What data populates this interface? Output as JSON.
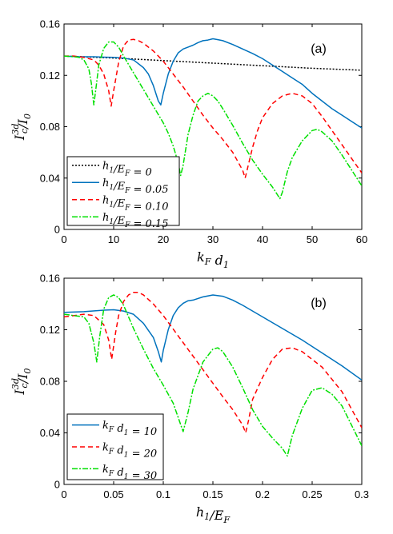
{
  "chart_data": [
    {
      "type": "line",
      "panel_label": "(a)",
      "xlabel": "k_F d_1",
      "ylabel": "I_c^{3d}/I_0",
      "xlim": [
        0,
        60
      ],
      "ylim": [
        0,
        0.16
      ],
      "xticks": [
        "0",
        "10",
        "20",
        "30",
        "40",
        "50",
        "60"
      ],
      "yticks": [
        "0",
        "0.04",
        "0.08",
        "0.12",
        "0.16"
      ],
      "grid": false,
      "legend_position": "bottom-left",
      "series": [
        {
          "name": "h_1/E_F = 0",
          "color": "#000000",
          "dash": "2,2",
          "x": [
            0,
            10,
            20,
            30,
            40,
            50,
            60
          ],
          "y": [
            0.135,
            0.1335,
            0.1315,
            0.1295,
            0.1275,
            0.1255,
            0.124
          ]
        },
        {
          "name": "h_1/E_F = 0.05",
          "color": "#0072BD",
          "dash": "",
          "x": [
            0,
            3,
            6,
            8,
            10,
            12,
            14,
            16,
            17,
            18,
            19,
            19.5,
            20,
            21,
            22,
            23,
            24,
            25,
            26,
            27,
            28,
            29,
            30,
            31,
            32,
            34,
            36,
            38,
            40,
            42,
            44,
            46,
            48,
            50,
            52,
            54,
            56,
            58,
            60
          ],
          "y": [
            0.135,
            0.1345,
            0.1345,
            0.1342,
            0.134,
            0.1335,
            0.132,
            0.126,
            0.121,
            0.112,
            0.1,
            0.097,
            0.106,
            0.121,
            0.131,
            0.1375,
            0.1405,
            0.142,
            0.1435,
            0.1455,
            0.147,
            0.1475,
            0.1485,
            0.1478,
            0.147,
            0.144,
            0.1405,
            0.137,
            0.133,
            0.128,
            0.123,
            0.118,
            0.113,
            0.106,
            0.1,
            0.094,
            0.089,
            0.084,
            0.079
          ]
        },
        {
          "name": "h_1/E_F = 0.10",
          "color": "#FF0000",
          "dash": "6,4",
          "x": [
            0,
            2,
            4,
            6,
            7,
            8,
            9,
            9.5,
            10,
            11,
            12,
            13,
            14,
            15,
            16,
            18,
            20,
            22,
            24,
            26,
            28,
            30,
            32,
            34,
            35,
            36,
            36.5,
            37,
            38,
            39,
            40,
            42,
            44,
            46,
            48,
            50,
            52,
            54,
            56,
            58,
            60
          ],
          "y": [
            0.135,
            0.135,
            0.134,
            0.132,
            0.128,
            0.121,
            0.108,
            0.096,
            0.108,
            0.13,
            0.143,
            0.1475,
            0.148,
            0.147,
            0.145,
            0.139,
            0.131,
            0.121,
            0.111,
            0.1,
            0.089,
            0.079,
            0.07,
            0.06,
            0.053,
            0.046,
            0.04,
            0.048,
            0.064,
            0.077,
            0.087,
            0.098,
            0.104,
            0.106,
            0.104,
            0.098,
            0.088,
            0.077,
            0.066,
            0.055,
            0.044
          ]
        },
        {
          "name": "h_1/E_F = 0.15",
          "color": "#00E000",
          "dash": "7,2,2,2",
          "x": [
            0,
            2,
            3,
            4,
            5,
            5.5,
            6,
            6.5,
            7,
            8,
            9,
            10,
            11,
            12,
            14,
            16,
            18,
            20,
            21,
            22,
            23,
            23.5,
            24,
            25,
            26,
            27,
            28,
            29,
            30,
            31,
            32,
            34,
            36,
            38,
            40,
            41,
            42,
            43,
            43.5,
            44,
            45,
            46,
            48,
            50,
            51,
            52,
            54,
            56,
            58,
            60
          ],
          "y": [
            0.135,
            0.1345,
            0.134,
            0.132,
            0.125,
            0.114,
            0.097,
            0.112,
            0.128,
            0.141,
            0.146,
            0.146,
            0.142,
            0.135,
            0.122,
            0.109,
            0.096,
            0.083,
            0.075,
            0.065,
            0.052,
            0.042,
            0.05,
            0.074,
            0.089,
            0.1,
            0.104,
            0.106,
            0.104,
            0.1,
            0.094,
            0.081,
            0.067,
            0.054,
            0.043,
            0.038,
            0.033,
            0.027,
            0.024,
            0.029,
            0.045,
            0.056,
            0.069,
            0.077,
            0.078,
            0.076,
            0.069,
            0.058,
            0.046,
            0.034
          ]
        }
      ]
    },
    {
      "type": "line",
      "panel_label": "(b)",
      "xlabel": "h_1/E_F",
      "ylabel": "I_c^{3d}/I_0",
      "xlim": [
        0,
        0.3
      ],
      "ylim": [
        0,
        0.16
      ],
      "xticks": [
        "0",
        "0.05",
        "0.1",
        "0.15",
        "0.2",
        "0.25",
        "0.3"
      ],
      "yticks": [
        "0",
        "0.04",
        "0.08",
        "0.12",
        "0.16"
      ],
      "grid": false,
      "legend_position": "bottom-left",
      "series": [
        {
          "name": "k_F d_1 = 10",
          "color": "#0072BD",
          "dash": "",
          "x": [
            0,
            0.02,
            0.04,
            0.05,
            0.06,
            0.07,
            0.08,
            0.09,
            0.095,
            0.098,
            0.1,
            0.105,
            0.11,
            0.115,
            0.12,
            0.125,
            0.13,
            0.14,
            0.15,
            0.16,
            0.17,
            0.18,
            0.2,
            0.22,
            0.24,
            0.26,
            0.28,
            0.3
          ],
          "y": [
            0.1335,
            0.134,
            0.1352,
            0.1355,
            0.1345,
            0.132,
            0.125,
            0.114,
            0.103,
            0.095,
            0.104,
            0.12,
            0.131,
            0.137,
            0.1405,
            0.1425,
            0.143,
            0.1455,
            0.147,
            0.146,
            0.143,
            0.139,
            0.13,
            0.121,
            0.112,
            0.102,
            0.092,
            0.081
          ]
        },
        {
          "name": "k_F d_1 = 20",
          "color": "#FF0000",
          "dash": "6,4",
          "x": [
            0,
            0.02,
            0.03,
            0.04,
            0.045,
            0.048,
            0.052,
            0.055,
            0.06,
            0.065,
            0.07,
            0.075,
            0.08,
            0.09,
            0.1,
            0.12,
            0.14,
            0.16,
            0.17,
            0.18,
            0.183,
            0.186,
            0.19,
            0.2,
            0.21,
            0.22,
            0.23,
            0.24,
            0.26,
            0.28,
            0.3
          ],
          "y": [
            0.13,
            0.132,
            0.131,
            0.124,
            0.112,
            0.097,
            0.118,
            0.131,
            0.142,
            0.147,
            0.149,
            0.149,
            0.147,
            0.14,
            0.131,
            0.11,
            0.089,
            0.068,
            0.058,
            0.046,
            0.04,
            0.05,
            0.066,
            0.083,
            0.097,
            0.105,
            0.106,
            0.103,
            0.091,
            0.072,
            0.044
          ]
        },
        {
          "name": "k_F d_1 = 30",
          "color": "#00E000",
          "dash": "7,2,2,2",
          "x": [
            0,
            0.02,
            0.025,
            0.03,
            0.033,
            0.036,
            0.04,
            0.045,
            0.05,
            0.055,
            0.06,
            0.07,
            0.08,
            0.09,
            0.1,
            0.11,
            0.115,
            0.12,
            0.125,
            0.13,
            0.14,
            0.15,
            0.155,
            0.16,
            0.17,
            0.18,
            0.19,
            0.2,
            0.21,
            0.22,
            0.225,
            0.23,
            0.24,
            0.25,
            0.26,
            0.27,
            0.28,
            0.3
          ],
          "y": [
            0.132,
            0.13,
            0.125,
            0.11,
            0.095,
            0.115,
            0.136,
            0.145,
            0.147,
            0.145,
            0.139,
            0.121,
            0.105,
            0.09,
            0.077,
            0.063,
            0.052,
            0.041,
            0.056,
            0.074,
            0.095,
            0.105,
            0.106,
            0.103,
            0.091,
            0.075,
            0.058,
            0.045,
            0.036,
            0.028,
            0.022,
            0.038,
            0.059,
            0.073,
            0.075,
            0.07,
            0.061,
            0.03
          ]
        }
      ]
    }
  ]
}
